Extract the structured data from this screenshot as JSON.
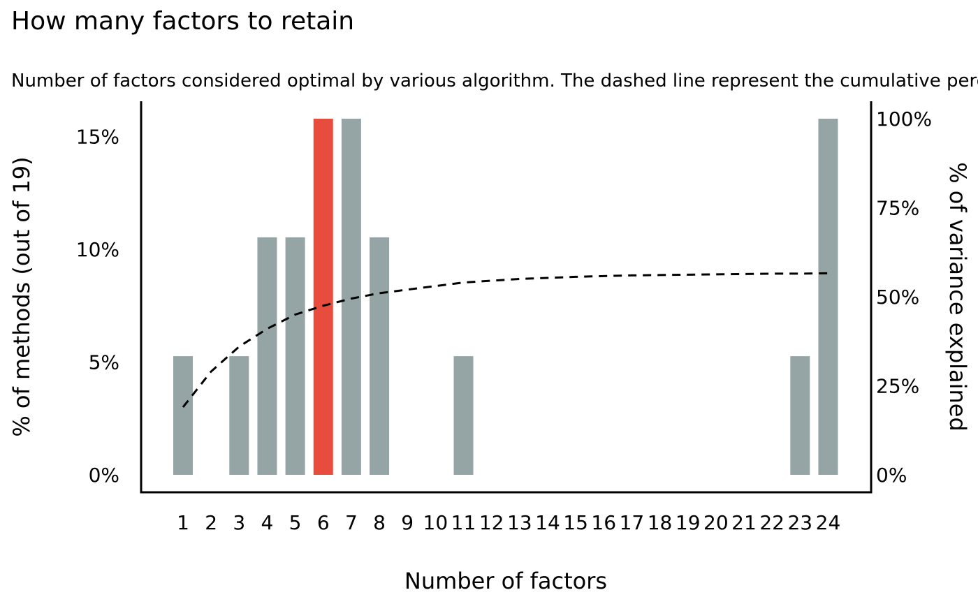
{
  "chart_data": {
    "type": "bar",
    "title": "How many factors to retain",
    "subtitle": "Number of factors considered optimal by various algorithm. The dashed line represent the cumulative percentage of variance explained",
    "xlabel": "Number of factors",
    "ylabel": "% of methods (out of 19)",
    "y2label": "% of variance explained",
    "categories": [
      "1",
      "2",
      "3",
      "4",
      "5",
      "6",
      "7",
      "8",
      "9",
      "10",
      "11",
      "12",
      "13",
      "14",
      "15",
      "16",
      "17",
      "18",
      "19",
      "20",
      "21",
      "22",
      "23",
      "24"
    ],
    "values": [
      5.26,
      0,
      5.26,
      10.53,
      10.53,
      15.79,
      15.79,
      10.53,
      0,
      0,
      5.26,
      0,
      0,
      0,
      0,
      0,
      0,
      0,
      0,
      0,
      0,
      0,
      5.26,
      15.79
    ],
    "highlight_category": "6",
    "bar_color": "#95A5A6",
    "highlight_color": "#E74C3C",
    "yticks": [
      "0%",
      "5%",
      "10%",
      "15%"
    ],
    "ytick_values": [
      0,
      5,
      10,
      15
    ],
    "ylim": [
      0,
      15.79
    ],
    "y2ticks": [
      "0%",
      "25%",
      "50%",
      "75%",
      "100%"
    ],
    "y2tick_values": [
      0,
      25,
      50,
      75,
      100
    ],
    "y2lim": [
      0,
      100
    ],
    "variance_line": {
      "style": "dashed",
      "color": "#000000",
      "x": [
        1,
        2,
        3,
        4,
        5,
        6,
        7,
        8,
        9,
        10,
        11,
        12,
        13,
        14,
        15,
        16,
        17,
        18,
        19,
        20,
        21,
        22,
        23,
        24
      ],
      "y": [
        19,
        29,
        36,
        41,
        45,
        47.5,
        49.5,
        51,
        52,
        53,
        54,
        54.5,
        55,
        55.3,
        55.6,
        55.8,
        56,
        56.1,
        56.2,
        56.3,
        56.4,
        56.5,
        56.5,
        56.6
      ]
    },
    "grid": false
  }
}
